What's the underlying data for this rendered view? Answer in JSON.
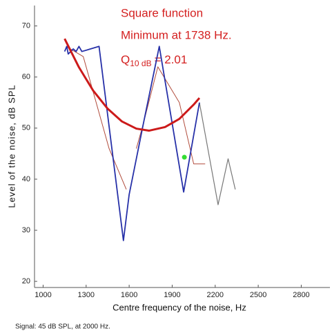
{
  "chart_data": {
    "type": "line",
    "x_label": "Centre frequency of the noise, Hz",
    "y_label": "Level of the noise,  dB SPL",
    "annotations": [
      "Square function",
      "Minimum at 1738 Hz."
    ],
    "q_annotation": {
      "symbol": "Q",
      "subscript": "10 dB",
      "text": "= 2.01"
    },
    "footer": "Signal: 45  dB SPL,  at 2000 Hz.",
    "xlim": [
      940,
      3000
    ],
    "ylim": [
      18.8,
      74
    ],
    "xticks": [
      1000,
      1300,
      1600,
      1900,
      2200,
      2500,
      2800
    ],
    "yticks": [
      20,
      30,
      40,
      50,
      60,
      70
    ],
    "series": [
      {
        "color": "#b04a3a",
        "width": 1,
        "x": [
          1160,
          1280,
          1460,
          1580,
          1620,
          1650,
          1700,
          1800,
          1950,
          2050,
          2130
        ],
        "values": [
          66,
          64,
          46,
          38,
          null,
          46,
          51,
          62,
          55,
          43,
          43
        ]
      },
      {
        "color": "#777777",
        "width": 1.2,
        "x": [
          2090,
          2220,
          2290,
          2340
        ],
        "values": [
          55,
          35,
          44,
          38
        ]
      },
      {
        "color": "#2630a8",
        "width": 1.8,
        "x": [
          1150,
          1165,
          1175,
          1210,
          1230,
          1250,
          1270,
          1390,
          1560,
          1600,
          1700,
          1810,
          1980,
          2090
        ],
        "values": [
          65,
          66,
          64.5,
          65.5,
          65,
          66,
          65,
          66,
          28,
          37,
          51,
          66,
          37.5,
          55
        ]
      },
      {
        "color": "#cc1a1a",
        "width": 3,
        "x": [
          1150,
          1250,
          1350,
          1450,
          1550,
          1650,
          1738,
          1850,
          1950,
          2050,
          2090
        ],
        "values": [
          67.5,
          61.9,
          57.3,
          53.8,
          51.3,
          49.9,
          49.5,
          50.2,
          51.8,
          54.6,
          55.9
        ]
      }
    ],
    "points": [
      {
        "color": "#33dd33",
        "x": 1985,
        "value": 44.3
      }
    ]
  }
}
